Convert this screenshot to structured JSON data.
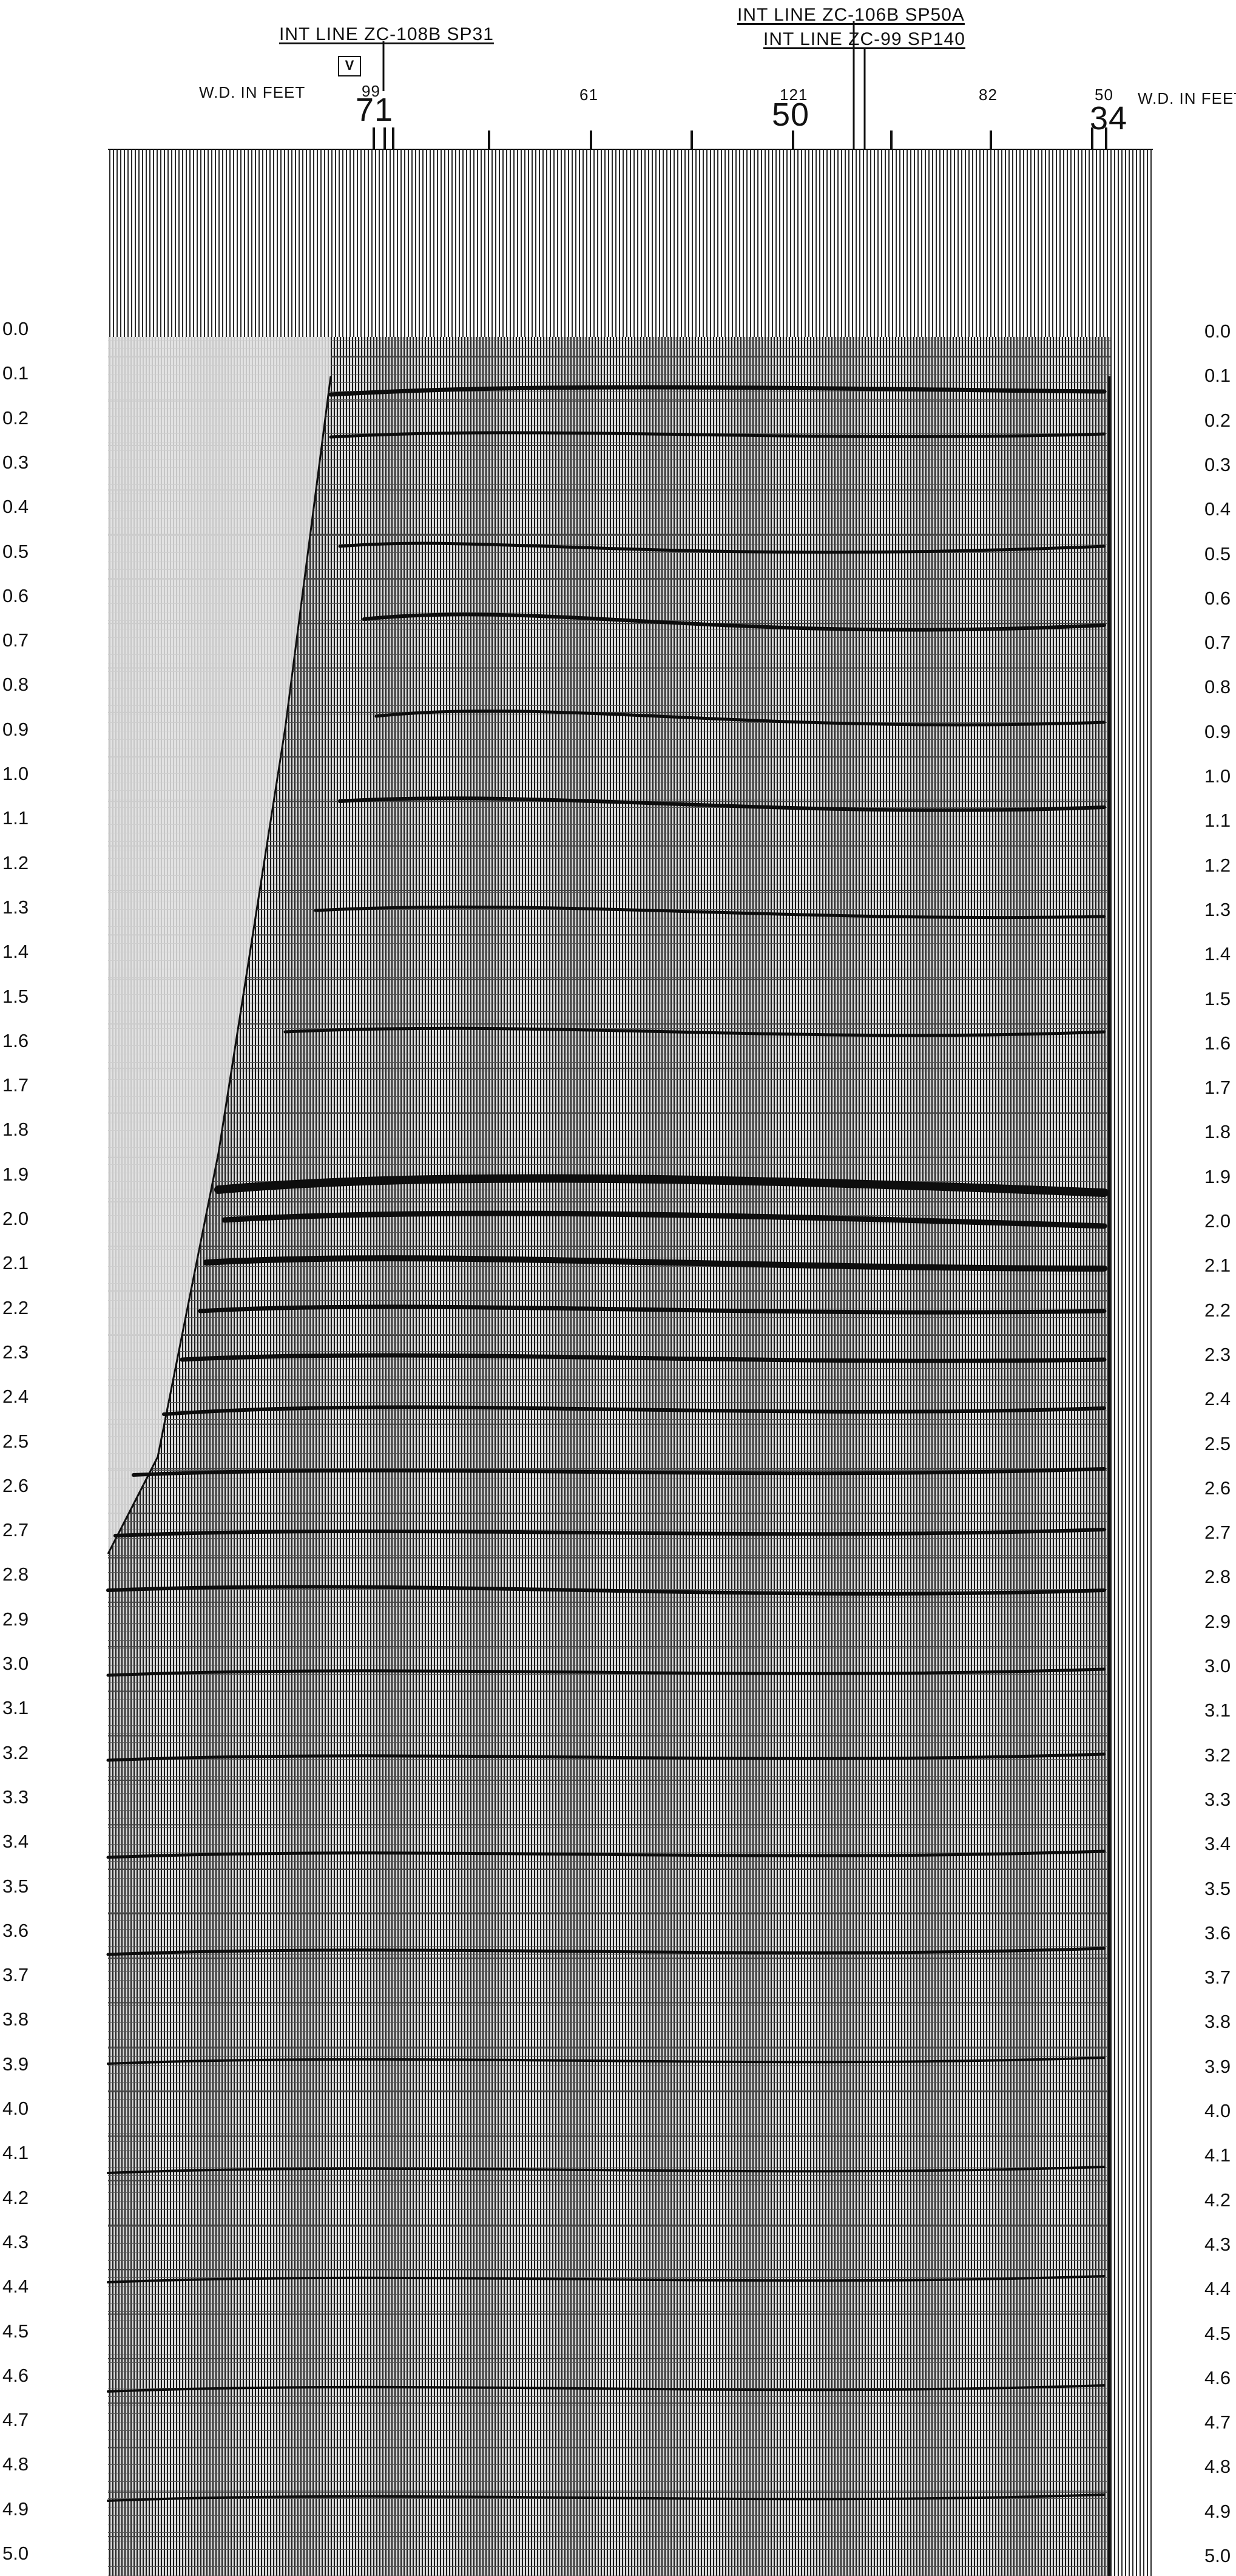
{
  "header": {
    "int_line_1": "INT LINE ZC-108B SP31",
    "int_line_2": "INT LINE ZC-106B SP50A",
    "int_line_3": "INT LINE ZC-99 SP140",
    "v_box": "V",
    "wd_label_left": "W.D. IN FEET",
    "wd_label_right": "W.D. IN FEET",
    "wd_values": [
      "99",
      "61",
      "121",
      "82",
      "50"
    ],
    "shot_points": [
      "71",
      "50",
      "34"
    ]
  },
  "time_axis": {
    "unit_hint": "",
    "labels": [
      "0.0",
      "0.1",
      "0.2",
      "0.3",
      "0.4",
      "0.5",
      "0.6",
      "0.7",
      "0.8",
      "0.9",
      "1.0",
      "1.1",
      "1.2",
      "1.3",
      "1.4",
      "1.5",
      "1.6",
      "1.7",
      "1.8",
      "1.9",
      "2.0",
      "2.1",
      "2.2",
      "2.3",
      "2.4",
      "2.5",
      "2.6",
      "2.7",
      "2.8",
      "2.9",
      "3.0",
      "3.1",
      "3.2",
      "3.3",
      "3.4",
      "3.5",
      "3.6",
      "3.7",
      "3.8",
      "3.9",
      "4.0",
      "4.1",
      "4.2",
      "4.3",
      "4.4",
      "4.5",
      "4.6",
      "4.7",
      "4.8",
      "4.9",
      "5.0"
    ],
    "right_first_label": "0.0"
  },
  "colors": {
    "ink": "#111111",
    "paper": "#ffffff",
    "grid": "#222222"
  }
}
